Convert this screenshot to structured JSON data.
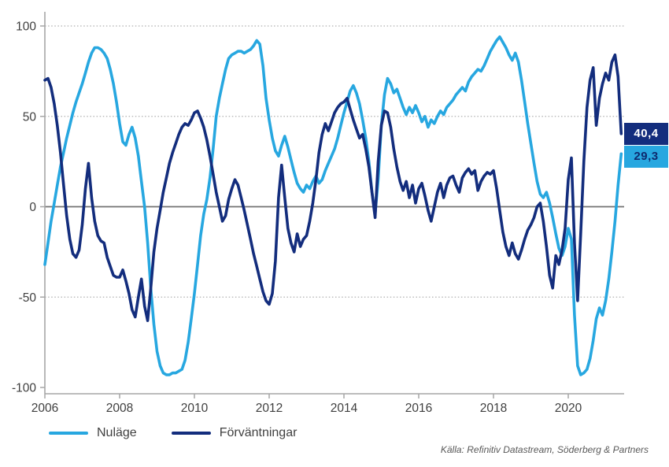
{
  "chart_data": {
    "type": "line",
    "title": "",
    "x_axis": {
      "start_year": 2006,
      "points_per_year": 12,
      "ticks": [
        2006,
        2008,
        2010,
        2012,
        2014,
        2016,
        2018,
        2020
      ],
      "range_years": [
        2006,
        2021.5
      ]
    },
    "y_axis": {
      "ticks": [
        100,
        50,
        0,
        -50,
        -100
      ],
      "gridlines": [
        100,
        50,
        -50
      ],
      "ylim": [
        -100,
        100
      ]
    },
    "grid": "horizontal-dotted",
    "legend_position": "bottom-left",
    "colors": {
      "grid": "#b0b0b0",
      "zero_line": "#737373",
      "axis": "#a6a6a6",
      "tick_label": "#3f3f3f",
      "source_text": "#595959",
      "tag_text_on_navy": "#ffffff",
      "tag_text_on_blue": "#0e2a6e"
    },
    "series": [
      {
        "id": "nulage",
        "name": "Nuläge",
        "color": "#27a7e0",
        "latest_value": 29.3,
        "latest_label": "29,3",
        "values": [
          -32,
          -20,
          -8,
          2,
          12,
          22,
          30,
          38,
          45,
          52,
          58,
          63,
          68,
          74,
          80,
          85,
          88,
          88,
          87,
          85,
          82,
          76,
          68,
          58,
          46,
          36,
          34,
          40,
          44,
          38,
          28,
          14,
          0,
          -20,
          -45,
          -65,
          -80,
          -88,
          -92,
          -93,
          -93,
          -92,
          -92,
          -91,
          -90,
          -85,
          -75,
          -62,
          -48,
          -32,
          -16,
          -4,
          4,
          16,
          32,
          50,
          60,
          68,
          76,
          82,
          84,
          85,
          86,
          86,
          85,
          86,
          87,
          89,
          92,
          90,
          78,
          60,
          48,
          38,
          31,
          28,
          34,
          39,
          33,
          26,
          19,
          13,
          10,
          8,
          12,
          10,
          14,
          17,
          13,
          15,
          20,
          24,
          28,
          32,
          38,
          45,
          52,
          58,
          64,
          67,
          63,
          57,
          48,
          38,
          25,
          8,
          -4,
          15,
          45,
          62,
          71,
          68,
          63,
          65,
          60,
          55,
          51,
          55,
          52,
          56,
          52,
          47,
          50,
          44,
          48,
          46,
          50,
          53,
          51,
          55,
          57,
          59,
          62,
          64,
          66,
          64,
          69,
          72,
          74,
          76,
          75,
          78,
          82,
          86,
          89,
          92,
          94,
          91,
          88,
          84,
          81,
          85,
          80,
          70,
          58,
          46,
          35,
          24,
          14,
          7,
          5,
          8,
          2,
          -6,
          -15,
          -23,
          -27,
          -22,
          -12,
          -18,
          -60,
          -88,
          -93,
          -92,
          -90,
          -84,
          -74,
          -62,
          -56,
          -60,
          -52,
          -40,
          -25,
          -8,
          12,
          29.3
        ]
      },
      {
        "id": "forvantningar",
        "name": "Förväntningar",
        "color": "#132d7d",
        "latest_value": 40.4,
        "latest_label": "40,4",
        "values": [
          70,
          71,
          66,
          57,
          45,
          30,
          12,
          -5,
          -18,
          -26,
          -28,
          -24,
          -10,
          10,
          24,
          5,
          -8,
          -16,
          -19,
          -20,
          -28,
          -33,
          -38,
          -39,
          -39,
          -35,
          -41,
          -48,
          -57,
          -61,
          -50,
          -40,
          -55,
          -63,
          -45,
          -25,
          -12,
          -2,
          8,
          16,
          24,
          30,
          35,
          40,
          44,
          46,
          45,
          48,
          52,
          53,
          49,
          44,
          37,
          28,
          18,
          8,
          0,
          -8,
          -5,
          4,
          10,
          15,
          12,
          5,
          -2,
          -10,
          -18,
          -26,
          -33,
          -40,
          -47,
          -52,
          -54,
          -48,
          -30,
          5,
          23,
          5,
          -12,
          -20,
          -25,
          -15,
          -22,
          -18,
          -16,
          -8,
          2,
          15,
          30,
          40,
          46,
          42,
          47,
          52,
          55,
          57,
          58,
          60,
          54,
          48,
          43,
          38,
          40,
          32,
          22,
          8,
          -6,
          25,
          45,
          53,
          52,
          44,
          32,
          22,
          14,
          9,
          14,
          5,
          12,
          2,
          10,
          13,
          6,
          -2,
          -8,
          0,
          8,
          13,
          5,
          12,
          16,
          17,
          12,
          8,
          16,
          19,
          21,
          18,
          20,
          9,
          14,
          17,
          19,
          18,
          20,
          10,
          -2,
          -14,
          -22,
          -27,
          -20,
          -26,
          -29,
          -24,
          -18,
          -13,
          -10,
          -6,
          0,
          2,
          -8,
          -22,
          -38,
          -45,
          -27,
          -32,
          -24,
          -12,
          15,
          27,
          -20,
          -52,
          -15,
          25,
          55,
          70,
          77,
          45,
          60,
          68,
          74,
          70,
          80,
          84,
          72,
          40.4
        ]
      }
    ]
  },
  "source": {
    "text": "Källa: Refinitiv Datastream, Söderberg & Partners"
  }
}
